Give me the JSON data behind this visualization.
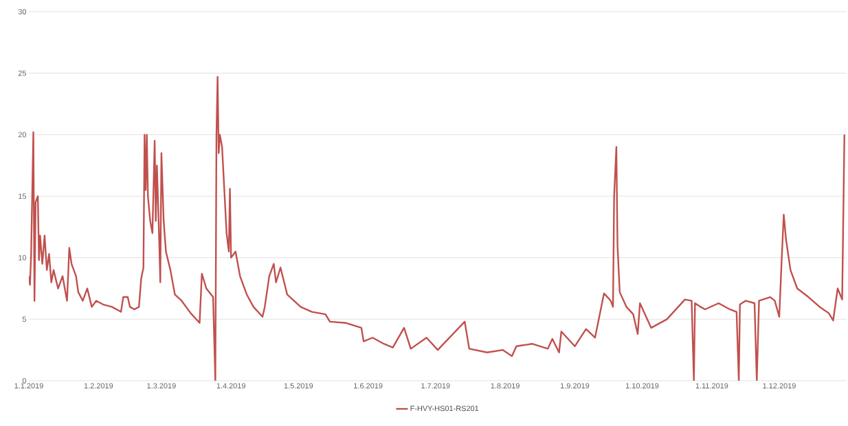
{
  "chart_data": {
    "type": "line",
    "xlim": [
      "2019-01-01",
      "2019-12-31"
    ],
    "xticks": [
      {
        "value": "2019-01-01",
        "label": "1.1.2019"
      },
      {
        "value": "2019-02-01",
        "label": "1.2.2019"
      },
      {
        "value": "2019-03-01",
        "label": "1.3.2019"
      },
      {
        "value": "2019-04-01",
        "label": "1.4.2019"
      },
      {
        "value": "2019-05-01",
        "label": "1.5.2019"
      },
      {
        "value": "2019-06-01",
        "label": "1.6.2019"
      },
      {
        "value": "2019-07-01",
        "label": "1.7.2019"
      },
      {
        "value": "2019-08-01",
        "label": "1.8.2019"
      },
      {
        "value": "2019-09-01",
        "label": "1.9.2019"
      },
      {
        "value": "2019-10-01",
        "label": "1.10.2019"
      },
      {
        "value": "2019-11-01",
        "label": "1.11.2019"
      },
      {
        "value": "2019-12-01",
        "label": "1.12.2019"
      }
    ],
    "ylim": [
      0,
      30
    ],
    "yticks": [
      0,
      5,
      10,
      15,
      20,
      25,
      30
    ],
    "grid": "y",
    "legend": "bottom",
    "marker": "none",
    "line_style": "solid",
    "series": [
      {
        "name": "F-HVY-HS01-RS201",
        "color": "#c0504d",
        "x": [
          "2019-01-01",
          "2019-01-01T12:00",
          "2019-01-02",
          "2019-01-03",
          "2019-01-03T12:00",
          "2019-01-04",
          "2019-01-05",
          "2019-01-05T12:00",
          "2019-01-06",
          "2019-01-07",
          "2019-01-08",
          "2019-01-09",
          "2019-01-10",
          "2019-01-11",
          "2019-01-12",
          "2019-01-14",
          "2019-01-16",
          "2019-01-18",
          "2019-01-19",
          "2019-01-20",
          "2019-01-22",
          "2019-01-23",
          "2019-01-25",
          "2019-01-27",
          "2019-01-29",
          "2019-01-31",
          "2019-02-03",
          "2019-02-07",
          "2019-02-11",
          "2019-02-12",
          "2019-02-14",
          "2019-02-15",
          "2019-02-17",
          "2019-02-19",
          "2019-02-20",
          "2019-02-21",
          "2019-02-21T12:00",
          "2019-02-22",
          "2019-02-22T12:00",
          "2019-02-23",
          "2019-02-24",
          "2019-02-25",
          "2019-02-26",
          "2019-02-26T12:00",
          "2019-02-27",
          "2019-02-28",
          "2019-02-28T12:00",
          "2019-03-01",
          "2019-03-02",
          "2019-03-03",
          "2019-03-05",
          "2019-03-07",
          "2019-03-10",
          "2019-03-14",
          "2019-03-18",
          "2019-03-19",
          "2019-03-21",
          "2019-03-24",
          "2019-03-25",
          "2019-03-25T12:00",
          "2019-03-26",
          "2019-03-26T12:00",
          "2019-03-27",
          "2019-03-28",
          "2019-03-29",
          "2019-03-30",
          "2019-03-31",
          "2019-03-31T12:00",
          "2019-04-01",
          "2019-04-03",
          "2019-04-05",
          "2019-04-08",
          "2019-04-11",
          "2019-04-15",
          "2019-04-16",
          "2019-04-18",
          "2019-04-20",
          "2019-04-21",
          "2019-04-23",
          "2019-04-26",
          "2019-04-29",
          "2019-05-02",
          "2019-05-07",
          "2019-05-13",
          "2019-05-15",
          "2019-05-22",
          "2019-05-29",
          "2019-05-30",
          "2019-06-03",
          "2019-06-08",
          "2019-06-12",
          "2019-06-17",
          "2019-06-20",
          "2019-06-27",
          "2019-07-02",
          "2019-07-14",
          "2019-07-16",
          "2019-07-24",
          "2019-07-31",
          "2019-08-04",
          "2019-08-06",
          "2019-08-13",
          "2019-08-20",
          "2019-08-22",
          "2019-08-25",
          "2019-08-26",
          "2019-09-01",
          "2019-09-06",
          "2019-09-10",
          "2019-09-14",
          "2019-09-17",
          "2019-09-18",
          "2019-09-18T12:00",
          "2019-09-19T12:00",
          "2019-09-20",
          "2019-09-21",
          "2019-09-24",
          "2019-09-27",
          "2019-09-29",
          "2019-09-30",
          "2019-10-05",
          "2019-10-12",
          "2019-10-20",
          "2019-10-23",
          "2019-10-24",
          "2019-10-24T12:00",
          "2019-10-27",
          "2019-10-29",
          "2019-11-04",
          "2019-11-09",
          "2019-11-12",
          "2019-11-13",
          "2019-11-13T12:00",
          "2019-11-16",
          "2019-11-20",
          "2019-11-21",
          "2019-11-22",
          "2019-11-27",
          "2019-11-29",
          "2019-12-01",
          "2019-12-02",
          "2019-12-03",
          "2019-12-04",
          "2019-12-06",
          "2019-12-09",
          "2019-12-14",
          "2019-12-19",
          "2019-12-23",
          "2019-12-25",
          "2019-12-27",
          "2019-12-29",
          "2019-12-30"
        ],
        "values": [
          8.5,
          7.8,
          10.2,
          20.2,
          6.5,
          14.5,
          15,
          9.8,
          11.8,
          9.5,
          11.8,
          9,
          10.3,
          8,
          9,
          7.5,
          8.5,
          6.5,
          10.8,
          9.5,
          8.5,
          7.2,
          6.5,
          7.5,
          6,
          6.5,
          6.2,
          6,
          5.6,
          6.8,
          6.8,
          6,
          5.8,
          6,
          8.3,
          9.2,
          20,
          15.5,
          20,
          15,
          13,
          12,
          19.5,
          13,
          17.5,
          11.5,
          8,
          18.5,
          13,
          10.5,
          9,
          7,
          6.5,
          5.5,
          4.7,
          8.7,
          7.5,
          6.8,
          0,
          20,
          24.7,
          18.5,
          20,
          19,
          15.5,
          12,
          10.5,
          15.6,
          10,
          10.5,
          8.5,
          7,
          6,
          5.2,
          6,
          8.5,
          9.5,
          8,
          9.2,
          7,
          6.5,
          6,
          5.6,
          5.4,
          4.8,
          4.7,
          4.3,
          3.2,
          3.5,
          3,
          2.7,
          4.3,
          2.6,
          3.5,
          2.5,
          4.8,
          2.6,
          2.3,
          2.5,
          2.0,
          2.8,
          3.0,
          2.6,
          3.4,
          2.3,
          4.0,
          2.8,
          4.2,
          3.5,
          7.1,
          6.5,
          6.0,
          15,
          19,
          11,
          7.2,
          6.0,
          5.4,
          3.8,
          6.3,
          4.3,
          5,
          6.6,
          6.5,
          0,
          6.3,
          6.0,
          5.8,
          6.3,
          5.8,
          5.6,
          0,
          6.2,
          6.5,
          6.3,
          0,
          6.5,
          6.8,
          6.5,
          5.2,
          9.5,
          13.5,
          11.5,
          9,
          7.5,
          6.8,
          6,
          5.5,
          4.9,
          7.5,
          6.6,
          20
        ]
      }
    ]
  }
}
